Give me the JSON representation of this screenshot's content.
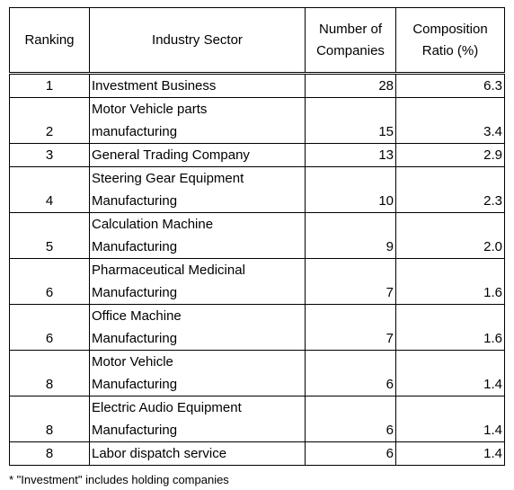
{
  "table": {
    "header": [
      "Ranking",
      "Industry Sector",
      "Number of Companies",
      "Composition Ratio (%)"
    ],
    "rows": [
      {
        "rank": "1",
        "sector": [
          "Investment Business"
        ],
        "companies": "28",
        "ratio": "6.3"
      },
      {
        "rank": "2",
        "sector": [
          "Motor Vehicle parts",
          "manufacturing"
        ],
        "companies": "15",
        "ratio": "3.4"
      },
      {
        "rank": "3",
        "sector": [
          "General Trading Company"
        ],
        "companies": "13",
        "ratio": "2.9"
      },
      {
        "rank": "4",
        "sector": [
          "Steering Gear Equipment",
          "Manufacturing"
        ],
        "companies": "10",
        "ratio": "2.3"
      },
      {
        "rank": "5",
        "sector": [
          "Calculation Machine",
          "Manufacturing"
        ],
        "companies": "9",
        "ratio": "2.0"
      },
      {
        "rank": "6",
        "sector": [
          "Pharmaceutical Medicinal",
          "Manufacturing"
        ],
        "companies": "7",
        "ratio": "1.6"
      },
      {
        "rank": "6",
        "sector": [
          "Office Machine",
          "Manufacturing"
        ],
        "companies": "7",
        "ratio": "1.6"
      },
      {
        "rank": "8",
        "sector": [
          "Motor Vehicle",
          "Manufacturing"
        ],
        "companies": "6",
        "ratio": "1.4"
      },
      {
        "rank": "8",
        "sector": [
          "Electric Audio Equipment",
          "Manufacturing"
        ],
        "companies": "6",
        "ratio": "1.4"
      },
      {
        "rank": "8",
        "sector": [
          "Labor dispatch service"
        ],
        "companies": "6",
        "ratio": "1.4"
      }
    ],
    "footnote": "* \"Investment\" includes holding companies"
  }
}
